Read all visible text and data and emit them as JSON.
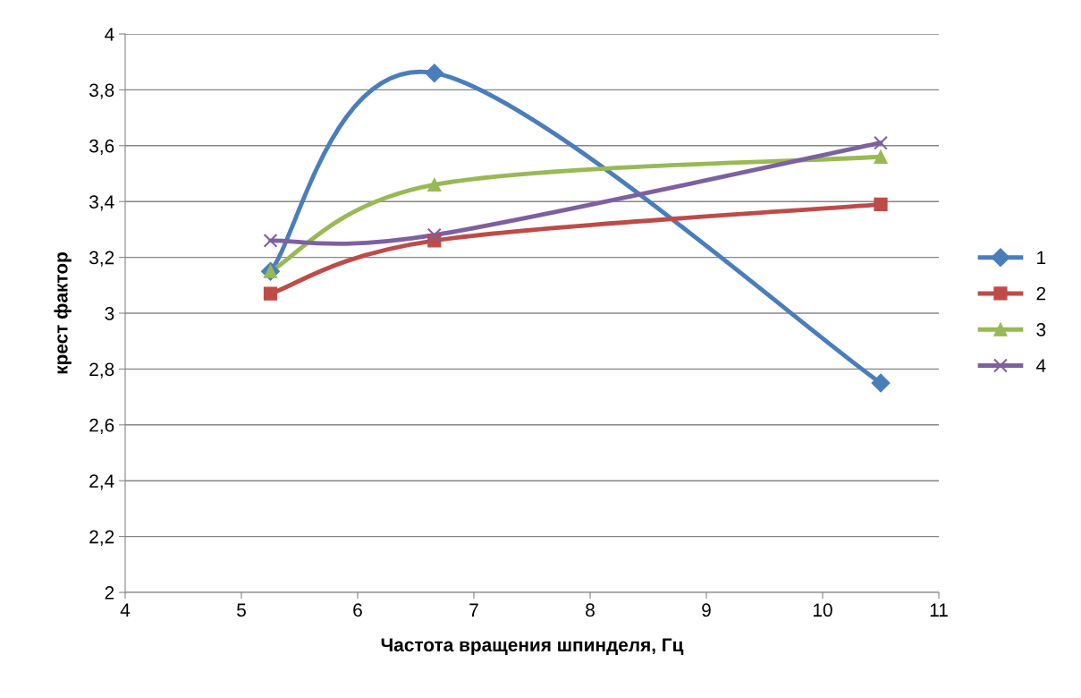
{
  "chart_data": {
    "type": "line",
    "xlabel": "Частота вращения шпинделя, Гц",
    "ylabel": "крест фактор",
    "xlim": [
      4,
      11
    ],
    "xticks": [
      4,
      5,
      6,
      7,
      8,
      9,
      10,
      11
    ],
    "ylim": [
      2,
      4
    ],
    "yticks": [
      2,
      {
        "value": 2.2,
        "label": "2,2"
      },
      {
        "value": 2.4,
        "label": "2,4"
      },
      {
        "value": 2.6,
        "label": "2,6"
      },
      {
        "value": 2.8,
        "label": "2,8"
      },
      3,
      {
        "value": 3.2,
        "label": "3,2"
      },
      {
        "value": 3.4,
        "label": "3,4"
      },
      {
        "value": 3.6,
        "label": "3,6"
      },
      {
        "value": 3.8,
        "label": "3,8"
      },
      4
    ],
    "grid": "y",
    "legend": "right",
    "line_style": "solid",
    "x": [
      5.25,
      6.66,
      10.5
    ],
    "series": [
      {
        "name": "1",
        "color": "#4a7ebb",
        "marker": "diamond",
        "values": [
          3.15,
          3.86,
          2.75
        ]
      },
      {
        "name": "2",
        "color": "#be4b48",
        "marker": "square",
        "values": [
          3.07,
          3.26,
          3.39
        ]
      },
      {
        "name": "3",
        "color": "#98b954",
        "marker": "triangle",
        "values": [
          3.15,
          3.46,
          3.56
        ]
      },
      {
        "name": "4",
        "color": "#7d60a0",
        "marker": "cross",
        "values": [
          3.26,
          3.28,
          3.61
        ]
      }
    ]
  }
}
